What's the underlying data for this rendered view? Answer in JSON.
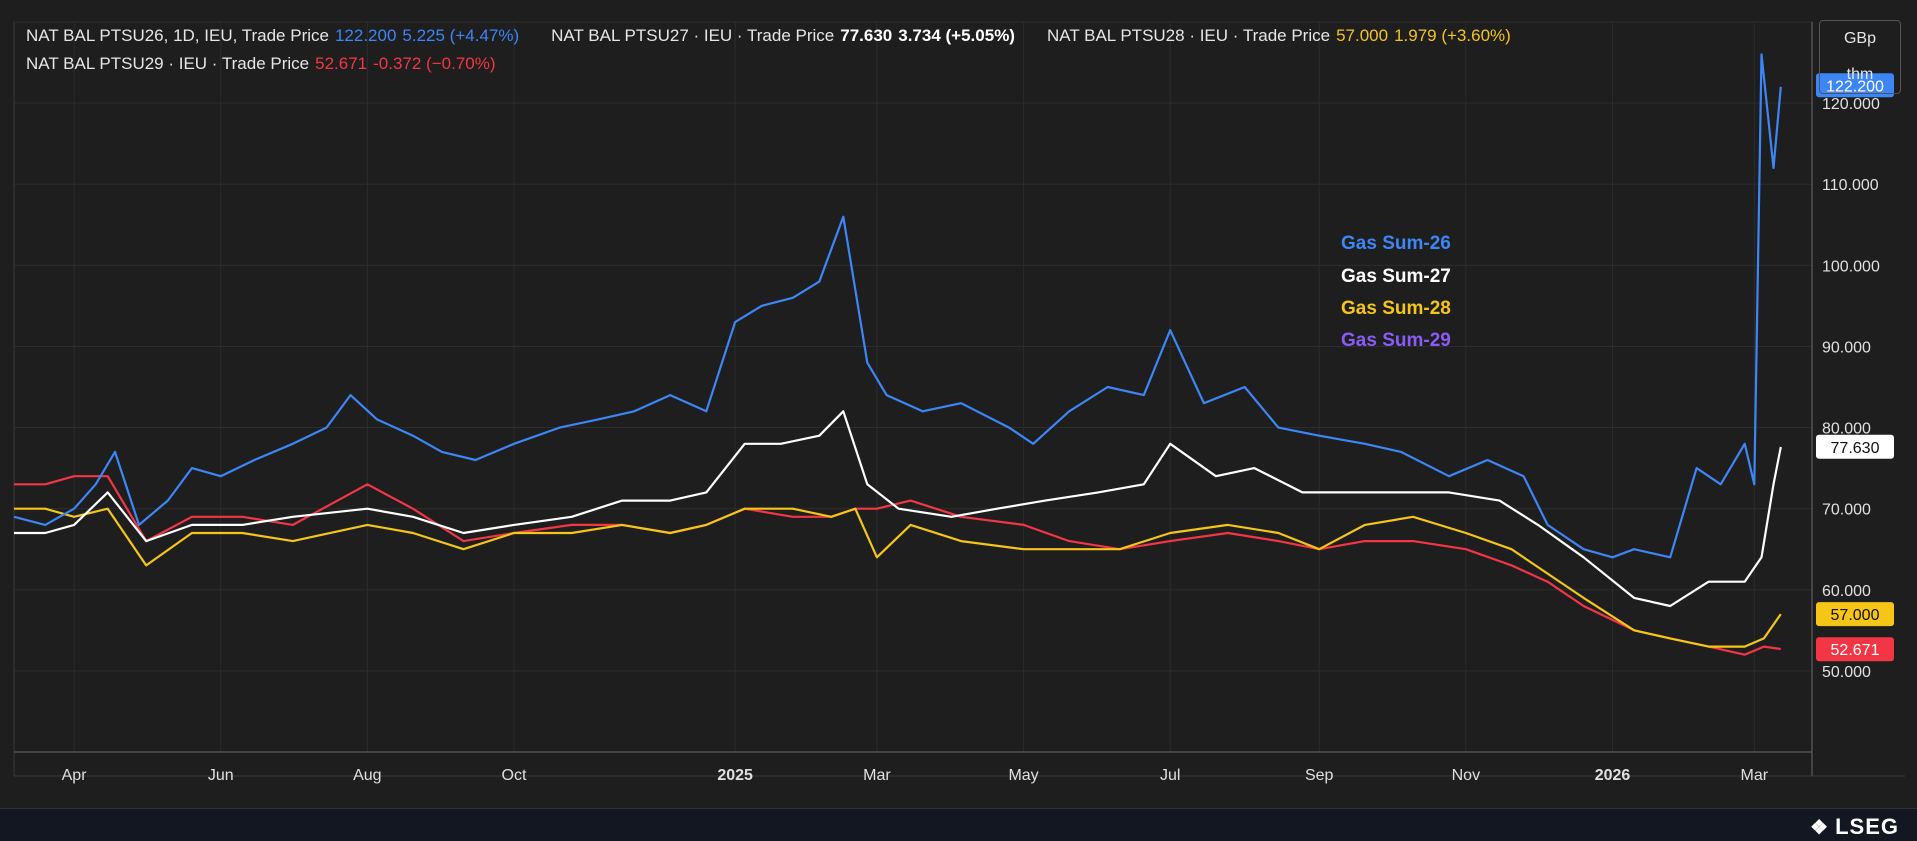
{
  "header": {
    "row1": [
      {
        "name": "NAT BAL PTSU26, 1D, IEU, Trade Price",
        "value": "122.200",
        "change": "5.225 (+4.47%)",
        "name_color": "#e6e6e6",
        "value_color": "#3d86f5",
        "change_color": "#3d86f5"
      },
      {
        "name": "NAT BAL PTSU27 · IEU · Trade Price",
        "value": "77.630",
        "change": "3.734 (+5.05%)",
        "name_color": "#e6e6e6",
        "value_color": "#ffffff",
        "change_color": "#ffffff"
      },
      {
        "name": "NAT BAL PTSU28 · IEU · Trade Price",
        "value": "57.000",
        "change": "1.979 (+3.60%)",
        "name_color": "#e6e6e6",
        "value_color": "#f5c518",
        "change_color": "#f5c518"
      }
    ],
    "row2": [
      {
        "name": "NAT BAL PTSU29 · IEU · Trade Price",
        "value": "52.671",
        "change": "-0.372 (−0.70%)",
        "name_color": "#e6e6e6",
        "value_color": "#f23645",
        "change_color": "#f23645"
      }
    ]
  },
  "unit": {
    "top": "GBp",
    "bottom": "thm"
  },
  "legend": [
    {
      "label": "Gas Sum-26",
      "color": "#3d86f5"
    },
    {
      "label": "Gas Sum-27",
      "color": "#ffffff"
    },
    {
      "label": "Gas Sum-28",
      "color": "#f5c518"
    },
    {
      "label": "Gas Sum-29",
      "color": "#8a5cf6"
    }
  ],
  "footer": {
    "brand": "LSEG"
  },
  "chart_data": {
    "type": "line",
    "ylim": [
      40,
      130
    ],
    "y_ticks": [
      "50.000",
      "60.000",
      "70.000",
      "80.000",
      "90.000",
      "100.000",
      "110.000",
      "120.000"
    ],
    "y_tick_values": [
      50,
      60,
      70,
      80,
      90,
      100,
      110,
      120
    ],
    "x_ticks": [
      {
        "label": "Apr",
        "date": "2024-04-01",
        "bold": false
      },
      {
        "label": "Jun",
        "date": "2024-06-01",
        "bold": false
      },
      {
        "label": "Aug",
        "date": "2024-08-01",
        "bold": false
      },
      {
        "label": "Oct",
        "date": "2024-10-01",
        "bold": false
      },
      {
        "label": "2025",
        "date": "2025-01-01",
        "bold": true
      },
      {
        "label": "Mar",
        "date": "2025-03-01",
        "bold": false
      },
      {
        "label": "May",
        "date": "2025-05-01",
        "bold": false
      },
      {
        "label": "Jul",
        "date": "2025-07-01",
        "bold": false
      },
      {
        "label": "Sep",
        "date": "2025-09-01",
        "bold": false
      },
      {
        "label": "Nov",
        "date": "2025-11-01",
        "bold": false
      },
      {
        "label": "2026",
        "date": "2026-01-01",
        "bold": true
      },
      {
        "label": "Mar",
        "date": "2026-03-01",
        "bold": false
      }
    ],
    "x_range": [
      "2024-03-07",
      "2026-03-25"
    ],
    "series": [
      {
        "name": "NAT BAL PTSU26",
        "color": "#3d86f5",
        "last_label": "122.200",
        "last_value": 122.2,
        "x": [
          "2024-03-07",
          "2024-03-20",
          "2024-04-01",
          "2024-04-10",
          "2024-04-18",
          "2024-04-28",
          "2024-05-10",
          "2024-05-20",
          "2024-06-01",
          "2024-06-15",
          "2024-07-01",
          "2024-07-15",
          "2024-07-25",
          "2024-08-05",
          "2024-08-20",
          "2024-09-01",
          "2024-09-15",
          "2024-10-01",
          "2024-10-20",
          "2024-11-05",
          "2024-11-20",
          "2024-12-05",
          "2024-12-20",
          "2025-01-01",
          "2025-01-12",
          "2025-01-25",
          "2025-02-05",
          "2025-02-15",
          "2025-02-25",
          "2025-03-05",
          "2025-03-20",
          "2025-04-05",
          "2025-04-25",
          "2025-05-05",
          "2025-05-20",
          "2025-06-05",
          "2025-06-20",
          "2025-07-01",
          "2025-07-15",
          "2025-08-01",
          "2025-08-15",
          "2025-09-01",
          "2025-09-20",
          "2025-10-05",
          "2025-10-25",
          "2025-11-10",
          "2025-11-25",
          "2025-12-05",
          "2025-12-20",
          "2026-01-01",
          "2026-01-10",
          "2026-01-25",
          "2026-02-05",
          "2026-02-15",
          "2026-02-25",
          "2026-03-01",
          "2026-03-04",
          "2026-03-09",
          "2026-03-12"
        ],
        "y": [
          69,
          68,
          70,
          73,
          77,
          68,
          71,
          75,
          74,
          76,
          78,
          80,
          84,
          81,
          79,
          77,
          76,
          78,
          80,
          81,
          82,
          84,
          82,
          93,
          95,
          96,
          98,
          106,
          88,
          84,
          82,
          83,
          80,
          78,
          82,
          85,
          84,
          92,
          83,
          85,
          80,
          79,
          78,
          77,
          74,
          76,
          74,
          68,
          65,
          64,
          65,
          64,
          75,
          73,
          78,
          73,
          126,
          112,
          122
        ]
      },
      {
        "name": "NAT BAL PTSU27",
        "color": "#ffffff",
        "last_label": "77.630",
        "last_value": 77.63,
        "x": [
          "2024-03-07",
          "2024-03-20",
          "2024-04-01",
          "2024-04-15",
          "2024-05-01",
          "2024-05-20",
          "2024-06-10",
          "2024-07-01",
          "2024-08-01",
          "2024-08-20",
          "2024-09-10",
          "2024-10-01",
          "2024-10-25",
          "2024-11-15",
          "2024-12-05",
          "2024-12-20",
          "2025-01-05",
          "2025-01-20",
          "2025-02-05",
          "2025-02-15",
          "2025-02-25",
          "2025-03-10",
          "2025-04-01",
          "2025-04-20",
          "2025-05-10",
          "2025-06-01",
          "2025-06-20",
          "2025-07-01",
          "2025-07-20",
          "2025-08-05",
          "2025-08-25",
          "2025-09-10",
          "2025-10-01",
          "2025-10-25",
          "2025-11-15",
          "2025-12-01",
          "2025-12-20",
          "2026-01-10",
          "2026-01-25",
          "2026-02-10",
          "2026-02-25",
          "2026-03-04",
          "2026-03-09",
          "2026-03-12"
        ],
        "y": [
          67,
          67,
          68,
          72,
          66,
          68,
          68,
          69,
          70,
          69,
          67,
          68,
          69,
          71,
          71,
          72,
          78,
          78,
          79,
          82,
          73,
          70,
          69,
          70,
          71,
          72,
          73,
          78,
          74,
          75,
          72,
          72,
          72,
          72,
          71,
          68,
          64,
          59,
          58,
          61,
          61,
          64,
          73,
          77.6
        ]
      },
      {
        "name": "NAT BAL PTSU28",
        "color": "#f5c518",
        "last_label": "57.000",
        "last_value": 57.0,
        "x": [
          "2024-03-07",
          "2024-03-20",
          "2024-04-01",
          "2024-04-15",
          "2024-05-01",
          "2024-05-20",
          "2024-06-10",
          "2024-07-01",
          "2024-08-01",
          "2024-08-20",
          "2024-09-10",
          "2024-10-01",
          "2024-10-25",
          "2024-11-15",
          "2024-12-05",
          "2024-12-20",
          "2025-01-05",
          "2025-01-25",
          "2025-02-10",
          "2025-02-20",
          "2025-03-01",
          "2025-03-15",
          "2025-04-05",
          "2025-05-01",
          "2025-05-20",
          "2025-06-10",
          "2025-07-01",
          "2025-07-25",
          "2025-08-15",
          "2025-09-01",
          "2025-09-20",
          "2025-10-10",
          "2025-11-01",
          "2025-11-20",
          "2025-12-05",
          "2025-12-20",
          "2026-01-10",
          "2026-01-25",
          "2026-02-10",
          "2026-02-25",
          "2026-03-05",
          "2026-03-12"
        ],
        "y": [
          70,
          70,
          69,
          70,
          63,
          67,
          67,
          66,
          68,
          67,
          65,
          67,
          67,
          68,
          67,
          68,
          70,
          70,
          69,
          70,
          64,
          68,
          66,
          65,
          65,
          65,
          67,
          68,
          67,
          65,
          68,
          69,
          67,
          65,
          62,
          59,
          55,
          54,
          53,
          53,
          54,
          57
        ]
      },
      {
        "name": "NAT BAL PTSU29",
        "color": "#f23645",
        "last_label": "52.671",
        "last_value": 52.671,
        "x": [
          "2024-03-07",
          "2024-03-20",
          "2024-04-01",
          "2024-04-15",
          "2024-05-01",
          "2024-05-20",
          "2024-06-10",
          "2024-07-01",
          "2024-08-01",
          "2024-08-20",
          "2024-09-10",
          "2024-10-01",
          "2024-10-25",
          "2024-11-15",
          "2024-12-05",
          "2024-12-20",
          "2025-01-05",
          "2025-01-25",
          "2025-02-10",
          "2025-02-20",
          "2025-03-01",
          "2025-03-15",
          "2025-04-05",
          "2025-05-01",
          "2025-05-20",
          "2025-06-10",
          "2025-07-01",
          "2025-07-25",
          "2025-08-15",
          "2025-09-01",
          "2025-09-20",
          "2025-10-10",
          "2025-11-01",
          "2025-11-20",
          "2025-12-05",
          "2025-12-20",
          "2026-01-10",
          "2026-01-25",
          "2026-02-10",
          "2026-02-25",
          "2026-03-05",
          "2026-03-12"
        ],
        "y": [
          73,
          73,
          74,
          74,
          66,
          69,
          69,
          68,
          73,
          70,
          66,
          67,
          68,
          68,
          67,
          68,
          70,
          69,
          69,
          70,
          70,
          71,
          69,
          68,
          66,
          65,
          66,
          67,
          66,
          65,
          66,
          66,
          65,
          63,
          61,
          58,
          55,
          54,
          53,
          52,
          53,
          52.7
        ]
      }
    ]
  }
}
